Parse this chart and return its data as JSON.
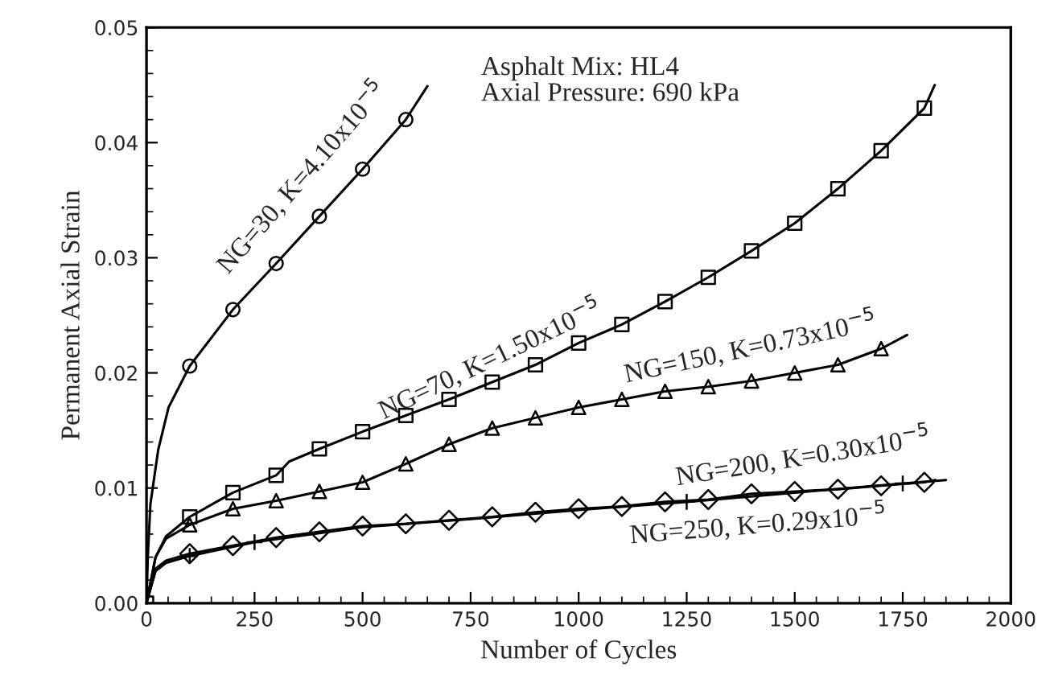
{
  "chart_data": {
    "type": "line",
    "xlabel": "Number of Cycles",
    "ylabel": "Permanent Axial Strain",
    "xlim": [
      0,
      2000
    ],
    "xticks": [
      0,
      250,
      500,
      750,
      1000,
      1250,
      1500,
      1750,
      2000
    ],
    "ylim": [
      0,
      0.05
    ],
    "yticks": [
      {
        "value": 0,
        "label": "0.00"
      },
      {
        "value": 0.01,
        "label": "0.01"
      },
      {
        "value": 0.02,
        "label": "0.02"
      },
      {
        "value": 0.03,
        "label": "0.03"
      },
      {
        "value": 0.04,
        "label": "0.04"
      },
      {
        "value": 0.05,
        "label": "0.05"
      }
    ],
    "grid": false,
    "legend": false,
    "series": [
      {
        "marker": "none",
        "line_style": "solid",
        "color": "#000000",
        "x": [
          0,
          3,
          9,
          27,
          51,
          100,
          200,
          300,
          400,
          500,
          600,
          650
        ],
        "values": [
          0,
          0.004,
          0.0086,
          0.0133,
          0.017,
          0.0206,
          0.0255,
          0.0295,
          0.0336,
          0.0377,
          0.042,
          0.0449
        ]
      },
      {
        "type": "scatter",
        "marker": "circle",
        "color": "#000000",
        "x": [
          100,
          200,
          300,
          400,
          500,
          600
        ],
        "values": [
          0.0206,
          0.0255,
          0.0295,
          0.0336,
          0.0377,
          0.042
        ]
      },
      {
        "marker": "none",
        "line_style": "solid",
        "color": "#000000",
        "x": [
          0,
          21,
          45,
          100,
          200,
          300,
          330,
          400,
          500,
          600,
          700,
          800,
          900,
          1000,
          1100,
          1200,
          1300,
          1400,
          1500,
          1600,
          1700,
          1800,
          1824
        ],
        "values": [
          0,
          0.004,
          0.0058,
          0.0075,
          0.0096,
          0.0111,
          0.0123,
          0.0134,
          0.0149,
          0.0163,
          0.0177,
          0.0192,
          0.0207,
          0.0226,
          0.0242,
          0.0262,
          0.0283,
          0.0306,
          0.033,
          0.036,
          0.0393,
          0.043,
          0.045
        ]
      },
      {
        "type": "scatter",
        "marker": "square",
        "color": "#000000",
        "x": [
          0,
          100,
          200,
          300,
          400,
          500,
          600,
          700,
          800,
          900,
          1000,
          1100,
          1200,
          1300,
          1400,
          1500,
          1600,
          1700,
          1800
        ],
        "values": [
          0,
          0.0075,
          0.0096,
          0.0111,
          0.0134,
          0.0149,
          0.0163,
          0.0177,
          0.0192,
          0.0207,
          0.0226,
          0.0242,
          0.0262,
          0.0283,
          0.0306,
          0.033,
          0.036,
          0.0393,
          0.043
        ]
      },
      {
        "marker": "none",
        "line_style": "solid",
        "color": "#000000",
        "x": [
          0,
          21,
          45,
          100,
          200,
          300,
          400,
          500,
          600,
          700,
          800,
          900,
          1000,
          1100,
          1200,
          1300,
          1400,
          1500,
          1600,
          1700,
          1760
        ],
        "values": [
          0,
          0.004,
          0.0056,
          0.0068,
          0.0082,
          0.0089,
          0.0097,
          0.0105,
          0.0121,
          0.0138,
          0.0152,
          0.0161,
          0.017,
          0.0177,
          0.0184,
          0.0188,
          0.0193,
          0.02,
          0.0207,
          0.0221,
          0.0233
        ]
      },
      {
        "type": "scatter",
        "marker": "triangle",
        "color": "#000000",
        "x": [
          100,
          200,
          300,
          400,
          500,
          600,
          700,
          800,
          900,
          1000,
          1100,
          1200,
          1300,
          1400,
          1500,
          1600,
          1700
        ],
        "values": [
          0.0068,
          0.0082,
          0.0089,
          0.0097,
          0.0105,
          0.0121,
          0.0138,
          0.0152,
          0.0161,
          0.017,
          0.0177,
          0.0184,
          0.0188,
          0.0193,
          0.02,
          0.0207,
          0.0221
        ]
      },
      {
        "marker": "none",
        "line_style": "solid",
        "color": "#000000",
        "x": [
          0,
          21,
          45,
          100,
          200,
          300,
          400,
          500,
          600,
          700,
          800,
          900,
          1000,
          1100,
          1200,
          1300,
          1400,
          1500,
          1600,
          1700,
          1800,
          1825
        ],
        "values": [
          0,
          0.003,
          0.0037,
          0.0043,
          0.005,
          0.0057,
          0.0062,
          0.0067,
          0.0069,
          0.0072,
          0.0075,
          0.0079,
          0.0082,
          0.0084,
          0.0088,
          0.009,
          0.0095,
          0.0097,
          0.0099,
          0.0102,
          0.0105,
          0.0107
        ]
      },
      {
        "type": "scatter",
        "marker": "diamond",
        "color": "#000000",
        "x": [
          100,
          200,
          300,
          400,
          500,
          600,
          700,
          800,
          900,
          1000,
          1100,
          1200,
          1300,
          1400,
          1500,
          1600,
          1700,
          1800
        ],
        "values": [
          0.0043,
          0.005,
          0.0057,
          0.0062,
          0.0067,
          0.0069,
          0.0072,
          0.0075,
          0.0079,
          0.0082,
          0.0084,
          0.0088,
          0.009,
          0.0095,
          0.0097,
          0.0099,
          0.0102,
          0.0105
        ]
      },
      {
        "marker": "none",
        "line_style": "solid",
        "color": "#000000",
        "x": [
          0,
          21,
          45,
          100,
          250,
          500,
          750,
          1000,
          1250,
          1500,
          1750,
          1850
        ],
        "values": [
          0,
          0.0028,
          0.0035,
          0.0041,
          0.0053,
          0.0066,
          0.0073,
          0.0081,
          0.0088,
          0.0096,
          0.0104,
          0.0107
        ]
      },
      {
        "type": "scatter",
        "marker": "cross",
        "color": "#000000",
        "x": [
          100,
          250,
          1250,
          1750
        ],
        "values": [
          0.0041,
          0.0053,
          0.0088,
          0.0104
        ]
      }
    ],
    "annotations": [
      "Asphalt Mix: HL4",
      "Axial Pressure: 690 kPa",
      "NG=30, K=4.10x10$^{−5}$",
      "NG=70, K=1.50x10$^{−5}$",
      "NG=150, K=0.73x10$^{−5}$",
      "NG=200, K=0.30x10$^{−5}$",
      "NG=250, K=0.29x10$^{−5}$"
    ]
  }
}
